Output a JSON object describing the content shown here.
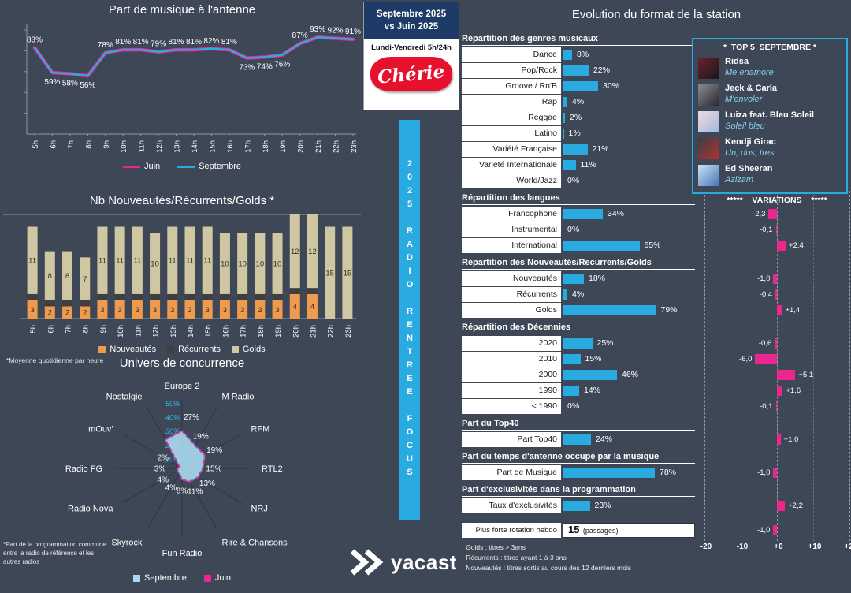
{
  "colors": {
    "background": "#3e4756",
    "blue": "#29abe2",
    "pink": "#ec268f",
    "orange": "#ee9b4e",
    "recurrents_dark": "#3f3f3f",
    "gold": "#cfc6a2",
    "navy": "#1e3a66",
    "cherie_red": "#e8112d",
    "radar_fill": "#a9d9ef"
  },
  "center": {
    "period_line1": "Septembre 2025",
    "period_line2": "vs Juin 2025",
    "subtitle": "Lundi-Vendredi 5h/24h",
    "logo_text": "Chérie",
    "banner_words": [
      "2025",
      "RADIO",
      "RENTREE",
      "FOCUS"
    ],
    "yacast_text": "yacast"
  },
  "left": {
    "footnote_bars": "*Moyenne quotidienne par heure",
    "footnote_radar": "*Part de la programmation commune entre la radio de référence et les autres radios"
  },
  "right": {
    "title": "Evolution du format de la station",
    "variations_header": "*****    VARIATIONS    *****",
    "variation_axis": [
      "-20",
      "-10",
      "+0",
      "+10",
      "+20"
    ],
    "top5": {
      "title": "*  TOP 5  SEPTEMBRE *",
      "entries": [
        {
          "artist": "Ridsa",
          "song": "Me enamore",
          "thumb": [
            "#6b2430",
            "#16161c"
          ]
        },
        {
          "artist": "Jeck & Carla",
          "song": "M'envoler",
          "thumb": [
            "#8a8d93",
            "#26282e"
          ]
        },
        {
          "artist": "Luiza feat. Bleu Soleil",
          "song": "Soleil bleu",
          "thumb": [
            "#f0d7e2",
            "#9fb9dc"
          ]
        },
        {
          "artist": "Kendji Girac",
          "song": "Un, dos, tres",
          "thumb": [
            "#3a3f4a",
            "#b3322e"
          ]
        },
        {
          "artist": "Ed Sheeran",
          "song": "Azizam",
          "thumb": [
            "#cfe2f4",
            "#3f77b8"
          ]
        }
      ]
    },
    "sections": [
      {
        "heading": "Répartition des genres musicaux",
        "rows": [
          {
            "label": "Dance",
            "value": 8,
            "value_label": "8%"
          },
          {
            "label": "Pop/Rock",
            "value": 22,
            "value_label": "22%"
          },
          {
            "label": "Groove / Rn'B",
            "value": 30,
            "value_label": "30%"
          },
          {
            "label": "Rap",
            "value": 4,
            "value_label": "4%"
          },
          {
            "label": "Reggae",
            "value": 2,
            "value_label": "2%"
          },
          {
            "label": "Latino",
            "value": 1,
            "value_label": "1%"
          },
          {
            "label": "Variété Française",
            "value": 21,
            "value_label": "21%"
          },
          {
            "label": "Variété Internationale",
            "value": 11,
            "value_label": "11%"
          },
          {
            "label": "World/Jazz",
            "value": 0,
            "value_label": "0%"
          }
        ]
      },
      {
        "heading": "Répartition des langues",
        "show_variations_header": true,
        "rows": [
          {
            "label": "Francophone",
            "value": 34,
            "value_label": "34%",
            "variation": -2.3,
            "variation_label": "-2,3"
          },
          {
            "label": "Instrumental",
            "value": 0,
            "value_label": "0%",
            "variation": -0.1,
            "variation_label": "-0,1"
          },
          {
            "label": "International",
            "value": 65,
            "value_label": "65%",
            "variation": 2.4,
            "variation_label": "+2,4"
          }
        ]
      },
      {
        "heading": "Répartition des Nouveautés/Recurrents/Golds",
        "rows": [
          {
            "label": "Nouveautés",
            "value": 18,
            "value_label": "18%",
            "variation": -1.0,
            "variation_label": "-1,0"
          },
          {
            "label": "Récurrents",
            "value": 4,
            "value_label": "4%",
            "variation": -0.4,
            "variation_label": "-0,4"
          },
          {
            "label": "Golds",
            "value": 79,
            "value_label": "79%",
            "variation": 1.4,
            "variation_label": "+1,4"
          }
        ]
      },
      {
        "heading": "Répartition des Décennies",
        "rows": [
          {
            "label": "2020",
            "value": 25,
            "value_label": "25%",
            "variation": -0.6,
            "variation_label": "-0,6"
          },
          {
            "label": "2010",
            "value": 15,
            "value_label": "15%",
            "variation": -6.0,
            "variation_label": "-6,0"
          },
          {
            "label": "2000",
            "value": 46,
            "value_label": "46%",
            "variation": 5.1,
            "variation_label": "+5,1"
          },
          {
            "label": "1990",
            "value": 14,
            "value_label": "14%",
            "variation": 1.6,
            "variation_label": "+1,6"
          },
          {
            "label": "< 1990",
            "value": 0,
            "value_label": "0%",
            "variation": -0.1,
            "variation_label": "-0,1"
          }
        ]
      },
      {
        "heading": "Part du Top40",
        "rows": [
          {
            "label": "Part Top40",
            "value": 24,
            "value_label": "24%",
            "variation": 1.0,
            "variation_label": "+1,0"
          }
        ]
      },
      {
        "heading": "Part du temps d'antenne occupé par la musique",
        "rows": [
          {
            "label": "Part de Musique",
            "value": 78,
            "value_label": "78%",
            "variation": -1.0,
            "variation_label": "-1,0"
          }
        ]
      },
      {
        "heading": "Part d'exclusivités dans la programmation",
        "rows": [
          {
            "label": "Taux d'exclusivités",
            "value": 23,
            "value_label": "23%",
            "variation": 2.2,
            "variation_label": "+2,2"
          }
        ]
      }
    ],
    "rotation": {
      "label": "Plus forte rotation hebdo",
      "value": "15",
      "suffix": "(passages)",
      "variation": -1.0,
      "variation_label": "-1,0"
    },
    "notes": [
      "· Golds : titres > 3ans",
      "· Récurrents : titres ayant 1 à 3 ans",
      "· Nouveautés : titres sortis au cours des 12 derniers mois"
    ]
  },
  "chart_data": [
    {
      "type": "line",
      "title": "Part de musique à l'antenne",
      "x": [
        "5h",
        "6h",
        "7h",
        "8h",
        "9h",
        "10h",
        "11h",
        "12h",
        "13h",
        "14h",
        "15h",
        "16h",
        "17h",
        "18h",
        "19h",
        "20h",
        "21h",
        "22h",
        "23h"
      ],
      "series": [
        {
          "name": "Juin",
          "color": "#ec268f",
          "values": [
            83,
            59,
            58,
            56,
            78,
            81,
            81,
            79,
            81,
            81,
            82,
            81,
            73,
            74,
            76,
            87,
            93,
            92,
            91
          ]
        },
        {
          "name": "Septembre",
          "color": "#29abe2",
          "values": [
            83,
            59,
            58,
            56,
            78,
            81,
            81,
            79,
            81,
            81,
            82,
            81,
            73,
            74,
            76,
            87,
            93,
            92,
            91
          ]
        }
      ],
      "labels": [
        "83%",
        "59%",
        "58%",
        "56%",
        "78%",
        "81%",
        "81%",
        "79%",
        "81%",
        "81%",
        "82%",
        "81%",
        "73%",
        "74%",
        "76%",
        "87%",
        "93%",
        "92%",
        "91%"
      ],
      "ylim": [
        0,
        100
      ],
      "legend_position": "bottom"
    },
    {
      "type": "bar",
      "stacked": true,
      "title": "Nb Nouveautés/Récurrents/Golds *",
      "categories": [
        "5h",
        "6h",
        "7h",
        "8h",
        "9h",
        "10h",
        "11h",
        "12h",
        "13h",
        "14h",
        "15h",
        "16h",
        "17h",
        "18h",
        "19h",
        "20h",
        "21h",
        "22h",
        "23h"
      ],
      "series": [
        {
          "name": "Nouveautés",
          "color": "#ee9b4e",
          "values": [
            3,
            2,
            2,
            2,
            3,
            3,
            3,
            3,
            3,
            3,
            3,
            3,
            3,
            3,
            3,
            4,
            4,
            0,
            0
          ],
          "labels": [
            "3",
            "2",
            "2",
            "2",
            "3",
            "3",
            "3",
            "3",
            "3",
            "3",
            "3",
            "3",
            "3",
            "3",
            "3",
            "4",
            "4",
            "0",
            ""
          ]
        },
        {
          "name": "Récurrents",
          "color": "#3f3f3f",
          "values": [
            1,
            1,
            1,
            1,
            1,
            1,
            1,
            1,
            1,
            1,
            1,
            1,
            1,
            1,
            1,
            1,
            1,
            0,
            0
          ]
        },
        {
          "name": "Golds",
          "color": "#cfc6a2",
          "values": [
            11,
            8,
            8,
            7,
            11,
            11,
            11,
            10,
            11,
            11,
            11,
            10,
            10,
            10,
            10,
            12,
            12,
            15,
            15
          ],
          "labels": [
            "11",
            "8",
            "8",
            "7",
            "11",
            "11",
            "11",
            "10",
            "11",
            "11",
            "11",
            "10",
            "10",
            "10",
            "10",
            "12",
            "12",
            "15",
            "15"
          ]
        }
      ],
      "ymax": 17,
      "legend_position": "bottom"
    },
    {
      "type": "radar",
      "title": "Univers de concurrence",
      "axes": [
        "Europe 2",
        "M Radio",
        "RFM",
        "RTL2",
        "NRJ",
        "Rire & Chansons",
        "Fun Radio",
        "Skyrock",
        "Radio Nova",
        "Radio FG",
        "mOuv'",
        "Nostalgie"
      ],
      "scale_labels": [
        "10%",
        "20%",
        "30%",
        "40%",
        "50%"
      ],
      "series": [
        {
          "name": "Septembre",
          "color": "#29abe2",
          "fill": "#a9d9ef",
          "values": [
            27,
            19,
            19,
            15,
            13,
            11,
            8,
            4,
            4,
            3,
            2,
            24
          ]
        },
        {
          "name": "Juin",
          "color": "#ec268f",
          "values": [
            27,
            19,
            19,
            15,
            13,
            11,
            8,
            4,
            4,
            3,
            2,
            24
          ]
        }
      ],
      "value_labels": [
        "27%",
        "19%",
        "19%",
        "15%",
        "13%",
        "11%",
        "8%",
        "4%",
        "4%",
        "3%",
        "2%",
        ""
      ],
      "scale_max": 50,
      "legend_position": "bottom"
    }
  ]
}
